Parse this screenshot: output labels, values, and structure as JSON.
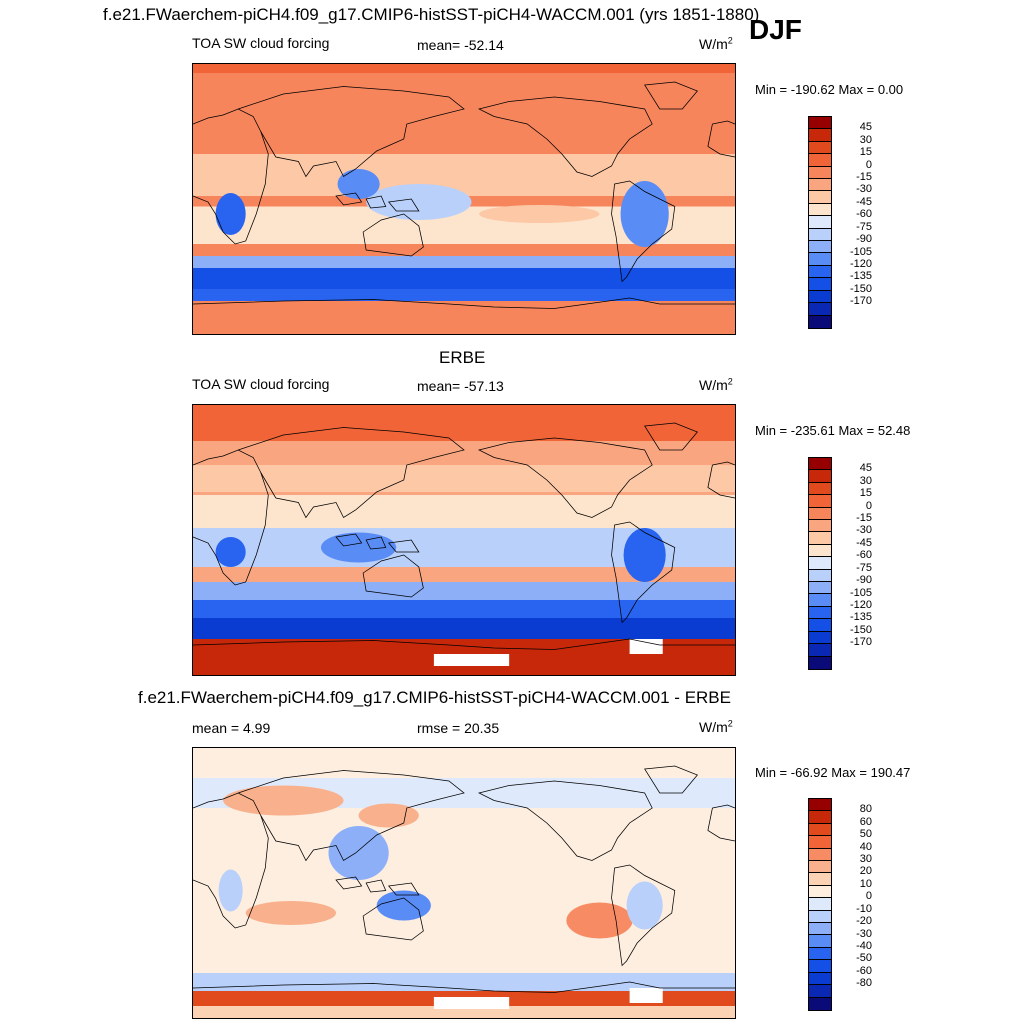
{
  "figure": {
    "title": "f.e21.FWaerchem-piCH4.f09_g17.CMIP6-histSST-piCH4-WACCM.001 (yrs 1851-1880)",
    "season": "DJF"
  },
  "colors": {
    "panel12": [
      "#0a0a78",
      "#0a28b4",
      "#0a3cd2",
      "#1450e6",
      "#2864f0",
      "#5a8cf5",
      "#8caff8",
      "#b9d0fa",
      "#deeafc",
      "#fde4cd",
      "#fcc8a6",
      "#f9a680",
      "#f7855c",
      "#f06438",
      "#e04a1c",
      "#c8280a",
      "#960000"
    ],
    "diff": [
      "#0a0a78",
      "#0a28b4",
      "#0a3cd2",
      "#1450e6",
      "#2864f0",
      "#5a8cf5",
      "#8caff8",
      "#b9d0fa",
      "#deeafc",
      "#fdeee0",
      "#fcd2b4",
      "#f9b08c",
      "#f78c64",
      "#f06438",
      "#e04a1c",
      "#c8280a",
      "#960000"
    ]
  },
  "chart_data": [
    {
      "type": "heatmap",
      "panel_title": "",
      "variable": "TOA SW cloud forcing",
      "stat_label": "mean= -52.14",
      "units_base": "W/m",
      "units_exp": "2",
      "minmax": "Min = -190.62 Max =   0.00",
      "colorbar_levels": [
        "45",
        "30",
        "15",
        "0",
        "-15",
        "-30",
        "-45",
        "-60",
        "-75",
        "-90",
        "-105",
        "-120",
        "-135",
        "-150",
        "-170"
      ],
      "colorbar_colors": "panel12",
      "field": "model"
    },
    {
      "type": "heatmap",
      "panel_title": "ERBE",
      "variable": "TOA SW cloud forcing",
      "stat_label": "mean= -57.13",
      "units_base": "W/m",
      "units_exp": "2",
      "minmax": "Min = -235.61 Max =  52.48",
      "colorbar_levels": [
        "45",
        "30",
        "15",
        "0",
        "-15",
        "-30",
        "-45",
        "-60",
        "-75",
        "-90",
        "-105",
        "-120",
        "-135",
        "-150",
        "-170"
      ],
      "colorbar_colors": "panel12",
      "field": "obs"
    },
    {
      "type": "heatmap",
      "panel_title": "f.e21.FWaerchem-piCH4.f09_g17.CMIP6-histSST-piCH4-WACCM.001 - ERBE",
      "variable": "",
      "stat_label": "mean =   4.99",
      "stat_label2": "rmse =  20.35",
      "units_base": "W/m",
      "units_exp": "2",
      "minmax": "Min = -66.92 Max = 190.47",
      "colorbar_levels": [
        "80",
        "60",
        "50",
        "40",
        "30",
        "20",
        "10",
        "0",
        "-10",
        "-20",
        "-30",
        "-40",
        "-50",
        "-60",
        "-80"
      ],
      "colorbar_colors": "diff",
      "field": "diff"
    }
  ]
}
